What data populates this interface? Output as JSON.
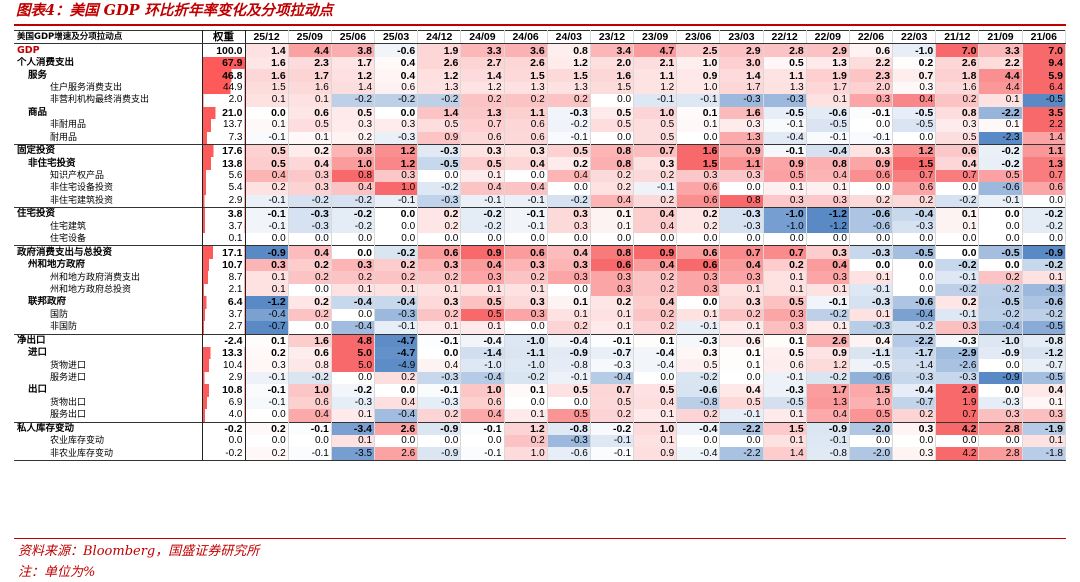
{
  "title": "图表4：美国 GDP 环比折年率变化及分项拉动点",
  "header": {
    "label": "美国GDP增速及分项拉动点",
    "weight": "权重",
    "periods": [
      "25/12",
      "25/09",
      "25/06",
      "25/03",
      "24/12",
      "24/09",
      "24/06",
      "24/03",
      "23/12",
      "23/09",
      "23/06",
      "23/03",
      "22/12",
      "22/09",
      "22/06",
      "22/03",
      "21/12",
      "21/09",
      "21/06"
    ]
  },
  "rows": [
    {
      "label": "GDP",
      "level": 0,
      "bold": true,
      "w": "100.0",
      "v": [
        "1.4",
        "4.4",
        "3.8",
        "-0.6",
        "1.9",
        "3.3",
        "3.6",
        "0.8",
        "3.4",
        "4.7",
        "2.5",
        "2.9",
        "2.8",
        "2.9",
        "0.6",
        "-1.0",
        "7.0",
        "3.3",
        "7.0"
      ]
    },
    {
      "label": "个人消费支出",
      "level": 0,
      "bold": true,
      "w": "67.9",
      "v": [
        "1.6",
        "2.3",
        "1.7",
        "0.4",
        "2.6",
        "2.7",
        "2.6",
        "1.2",
        "2.0",
        "2.1",
        "1.0",
        "3.0",
        "0.5",
        "1.3",
        "2.2",
        "0.2",
        "2.6",
        "2.2",
        "9.4"
      ]
    },
    {
      "label": "服务",
      "level": 1,
      "bold": true,
      "w": "46.8",
      "v": [
        "1.6",
        "1.7",
        "1.2",
        "0.4",
        "1.2",
        "1.4",
        "1.5",
        "1.5",
        "1.6",
        "1.1",
        "0.9",
        "1.4",
        "1.1",
        "1.9",
        "2.3",
        "0.7",
        "1.8",
        "4.4",
        "5.9"
      ]
    },
    {
      "label": "住户服务消费支出",
      "level": 3,
      "bold": false,
      "w": "44.9",
      "v": [
        "1.5",
        "1.6",
        "1.4",
        "0.6",
        "1.3",
        "1.2",
        "1.3",
        "1.3",
        "1.5",
        "1.2",
        "1.0",
        "1.7",
        "1.3",
        "1.7",
        "2.0",
        "0.3",
        "1.6",
        "4.4",
        "6.4"
      ]
    },
    {
      "label": "非营利机构最终消费支出",
      "level": 3,
      "bold": false,
      "w": "2.0",
      "v": [
        "0.1",
        "0.1",
        "-0.2",
        "-0.2",
        "-0.2",
        "0.2",
        "0.2",
        "0.2",
        "0.0",
        "-0.1",
        "-0.1",
        "-0.3",
        "-0.3",
        "0.1",
        "0.3",
        "0.4",
        "0.2",
        "0.1",
        "-0.5"
      ]
    },
    {
      "label": "商品",
      "level": 1,
      "bold": true,
      "w": "21.0",
      "v": [
        "0.0",
        "0.6",
        "0.5",
        "0.0",
        "1.4",
        "1.3",
        "1.1",
        "-0.3",
        "0.5",
        "1.0",
        "0.1",
        "1.6",
        "-0.5",
        "-0.6",
        "-0.1",
        "-0.5",
        "0.8",
        "-2.2",
        "3.5"
      ]
    },
    {
      "label": "非耐用品",
      "level": 3,
      "bold": false,
      "w": "13.7",
      "v": [
        "0.1",
        "0.5",
        "0.3",
        "0.3",
        "0.5",
        "0.7",
        "0.6",
        "-0.2",
        "0.5",
        "0.5",
        "0.1",
        "0.3",
        "-0.1",
        "-0.5",
        "0.0",
        "-0.5",
        "0.3",
        "0.1",
        "2.2"
      ]
    },
    {
      "label": "耐用品",
      "level": 3,
      "bold": false,
      "w": "7.3",
      "v": [
        "-0.1",
        "0.1",
        "0.2",
        "-0.3",
        "0.9",
        "0.6",
        "0.6",
        "-0.1",
        "0.0",
        "0.5",
        "0.0",
        "1.3",
        "-0.4",
        "-0.1",
        "-0.1",
        "0.0",
        "0.5",
        "-2.3",
        "1.4"
      ]
    },
    {
      "label": "固定投资",
      "level": 0,
      "bold": true,
      "sep": true,
      "w": "17.6",
      "v": [
        "0.5",
        "0.2",
        "0.8",
        "1.2",
        "-0.3",
        "0.3",
        "0.3",
        "0.5",
        "0.8",
        "0.7",
        "1.6",
        "0.9",
        "-0.1",
        "-0.4",
        "0.3",
        "1.2",
        "0.6",
        "-0.2",
        "1.1"
      ]
    },
    {
      "label": "非住宅投资",
      "level": 1,
      "bold": true,
      "w": "13.8",
      "v": [
        "0.5",
        "0.4",
        "1.0",
        "1.2",
        "-0.5",
        "0.5",
        "0.4",
        "0.2",
        "0.8",
        "0.3",
        "1.5",
        "1.1",
        "0.9",
        "0.8",
        "0.9",
        "1.5",
        "0.4",
        "-0.2",
        "1.3"
      ]
    },
    {
      "label": "知识产权产品",
      "level": 3,
      "bold": false,
      "w": "5.6",
      "v": [
        "0.4",
        "0.3",
        "0.8",
        "0.3",
        "0.0",
        "0.1",
        "0.0",
        "0.4",
        "0.2",
        "0.2",
        "0.3",
        "0.3",
        "0.5",
        "0.4",
        "0.6",
        "0.7",
        "0.7",
        "0.5",
        "0.7"
      ]
    },
    {
      "label": "非住宅设备投资",
      "level": 3,
      "bold": false,
      "w": "5.4",
      "v": [
        "0.2",
        "0.3",
        "0.4",
        "1.0",
        "-0.2",
        "0.4",
        "0.4",
        "0.0",
        "0.2",
        "-0.1",
        "0.6",
        "0.0",
        "0.1",
        "0.1",
        "0.0",
        "0.6",
        "0.0",
        "-0.6",
        "0.6"
      ]
    },
    {
      "label": "非住宅建筑投资",
      "level": 3,
      "bold": false,
      "w": "2.9",
      "v": [
        "-0.1",
        "-0.2",
        "-0.2",
        "-0.1",
        "-0.3",
        "-0.1",
        "-0.1",
        "-0.2",
        "0.4",
        "0.2",
        "0.6",
        "0.8",
        "0.3",
        "0.3",
        "0.2",
        "0.2",
        "-0.2",
        "-0.1",
        "0.0"
      ]
    },
    {
      "label": "住宅投资",
      "level": 0,
      "bold": true,
      "sep": true,
      "w": "3.8",
      "v": [
        "-0.1",
        "-0.3",
        "-0.2",
        "0.0",
        "0.2",
        "-0.2",
        "-0.1",
        "0.3",
        "0.1",
        "0.4",
        "0.2",
        "-0.3",
        "-1.0",
        "-1.2",
        "-0.6",
        "-0.4",
        "0.1",
        "0.0",
        "-0.2"
      ]
    },
    {
      "label": "住宅建筑",
      "level": 3,
      "bold": false,
      "w": "3.7",
      "v": [
        "-0.1",
        "-0.3",
        "-0.2",
        "0.0",
        "0.2",
        "-0.2",
        "-0.1",
        "0.3",
        "0.1",
        "0.4",
        "0.2",
        "-0.3",
        "-1.0",
        "-1.2",
        "-0.6",
        "-0.3",
        "0.1",
        "0.0",
        "-0.2"
      ]
    },
    {
      "label": "住宅设备",
      "level": 3,
      "bold": false,
      "w": "0.1",
      "v": [
        "0.0",
        "0.0",
        "0.0",
        "0.0",
        "0.0",
        "0.0",
        "0.0",
        "0.0",
        "0.0",
        "0.0",
        "0.0",
        "0.0",
        "0.0",
        "0.0",
        "0.0",
        "0.0",
        "0.0",
        "0.0",
        "0.0"
      ]
    },
    {
      "label": "政府消费支出与总投资",
      "level": 0,
      "bold": true,
      "sep": true,
      "w": "17.1",
      "v": [
        "-0.9",
        "0.4",
        "0.0",
        "-0.2",
        "0.6",
        "0.9",
        "0.6",
        "0.4",
        "0.8",
        "0.9",
        "0.6",
        "0.7",
        "0.7",
        "0.3",
        "-0.3",
        "-0.5",
        "0.0",
        "-0.5",
        "-0.9"
      ]
    },
    {
      "label": "州和地方政府",
      "level": 1,
      "bold": true,
      "w": "10.7",
      "v": [
        "0.3",
        "0.2",
        "0.3",
        "0.2",
        "0.3",
        "0.4",
        "0.3",
        "0.3",
        "0.6",
        "0.4",
        "0.6",
        "0.4",
        "0.2",
        "0.4",
        "0.0",
        "0.0",
        "-0.2",
        "0.0",
        "-0.2"
      ]
    },
    {
      "label": "州和地方政府消费支出",
      "level": 3,
      "bold": false,
      "w": "8.7",
      "v": [
        "0.1",
        "0.2",
        "0.2",
        "0.2",
        "0.2",
        "0.3",
        "0.2",
        "0.3",
        "0.3",
        "0.2",
        "0.3",
        "0.3",
        "0.1",
        "0.3",
        "0.1",
        "0.0",
        "-0.1",
        "0.2",
        "0.1"
      ]
    },
    {
      "label": "州和地方政府总投资",
      "level": 3,
      "bold": false,
      "w": "2.1",
      "v": [
        "0.1",
        "0.0",
        "0.1",
        "0.1",
        "0.1",
        "0.1",
        "0.1",
        "0.0",
        "0.3",
        "0.2",
        "0.3",
        "0.1",
        "0.1",
        "0.1",
        "-0.1",
        "0.0",
        "-0.2",
        "-0.2",
        "-0.3"
      ]
    },
    {
      "label": "联邦政府",
      "level": 1,
      "bold": true,
      "w": "6.4",
      "v": [
        "-1.2",
        "0.2",
        "-0.4",
        "-0.4",
        "0.3",
        "0.5",
        "0.3",
        "0.1",
        "0.2",
        "0.4",
        "0.0",
        "0.3",
        "0.5",
        "-0.1",
        "-0.3",
        "-0.6",
        "0.2",
        "-0.5",
        "-0.6"
      ]
    },
    {
      "label": "国防",
      "level": 3,
      "bold": false,
      "w": "3.7",
      "v": [
        "-0.4",
        "0.2",
        "0.0",
        "-0.3",
        "0.2",
        "0.5",
        "0.3",
        "0.1",
        "0.1",
        "0.2",
        "0.1",
        "0.2",
        "0.3",
        "-0.2",
        "0.1",
        "-0.4",
        "-0.1",
        "-0.2",
        "-0.2"
      ]
    },
    {
      "label": "非国防",
      "level": 3,
      "bold": false,
      "w": "2.7",
      "v": [
        "-0.7",
        "0.0",
        "-0.4",
        "-0.1",
        "0.1",
        "0.1",
        "0.0",
        "0.2",
        "0.1",
        "0.2",
        "-0.1",
        "0.1",
        "0.3",
        "0.1",
        "-0.3",
        "-0.2",
        "0.3",
        "-0.4",
        "-0.5"
      ]
    },
    {
      "label": "净出口",
      "level": 0,
      "bold": true,
      "sep": true,
      "w": "-2.4",
      "v": [
        "0.1",
        "1.6",
        "4.8",
        "-4.7",
        "-0.1",
        "-0.4",
        "-1.0",
        "-0.4",
        "-0.1",
        "0.1",
        "-0.3",
        "0.6",
        "0.1",
        "2.6",
        "0.4",
        "-2.2",
        "-0.3",
        "-1.0",
        "-0.8"
      ]
    },
    {
      "label": "进口",
      "level": 1,
      "bold": true,
      "w": "13.3",
      "v": [
        "0.2",
        "0.6",
        "5.0",
        "-4.7",
        "0.0",
        "-1.4",
        "-1.1",
        "-0.9",
        "-0.7",
        "-0.4",
        "0.3",
        "0.1",
        "0.5",
        "0.9",
        "-1.1",
        "-1.7",
        "-2.9",
        "-0.9",
        "-1.2"
      ]
    },
    {
      "label": "货物进口",
      "level": 3,
      "bold": false,
      "w": "10.4",
      "v": [
        "0.3",
        "0.8",
        "5.0",
        "-4.9",
        "0.4",
        "-1.0",
        "-1.0",
        "-0.8",
        "-0.3",
        "-0.4",
        "0.5",
        "0.1",
        "0.6",
        "1.2",
        "-0.5",
        "-1.4",
        "-2.6",
        "0.0",
        "-0.7"
      ]
    },
    {
      "label": "服务进口",
      "level": 3,
      "bold": false,
      "w": "2.9",
      "v": [
        "-0.1",
        "-0.2",
        "0.0",
        "0.2",
        "-0.3",
        "-0.4",
        "-0.2",
        "-0.1",
        "-0.4",
        "0.0",
        "-0.2",
        "0.0",
        "-0.1",
        "-0.2",
        "-0.6",
        "-0.3",
        "-0.3",
        "-0.9",
        "-0.5"
      ]
    },
    {
      "label": "出口",
      "level": 1,
      "bold": true,
      "w": "10.8",
      "v": [
        "-0.1",
        "1.0",
        "-0.2",
        "0.0",
        "-0.1",
        "1.0",
        "0.1",
        "0.5",
        "0.7",
        "0.5",
        "-0.6",
        "0.4",
        "-0.3",
        "1.7",
        "1.5",
        "-0.4",
        "2.6",
        "0.0",
        "0.4"
      ]
    },
    {
      "label": "货物出口",
      "level": 3,
      "bold": false,
      "w": "6.9",
      "v": [
        "-0.1",
        "0.6",
        "-0.3",
        "0.4",
        "-0.3",
        "0.6",
        "0.0",
        "0.0",
        "0.5",
        "0.4",
        "-0.8",
        "0.5",
        "-0.5",
        "1.3",
        "1.0",
        "-0.7",
        "1.9",
        "-0.3",
        "0.1"
      ]
    },
    {
      "label": "服务出口",
      "level": 3,
      "bold": false,
      "w": "4.0",
      "v": [
        "0.0",
        "0.4",
        "0.1",
        "-0.4",
        "0.2",
        "0.4",
        "0.1",
        "0.5",
        "0.2",
        "0.1",
        "0.2",
        "-0.1",
        "0.1",
        "0.4",
        "0.5",
        "0.2",
        "0.7",
        "0.3",
        "0.3"
      ]
    },
    {
      "label": "私人库存变动",
      "level": 0,
      "bold": true,
      "sep": true,
      "w": "-0.2",
      "v": [
        "0.2",
        "-0.1",
        "-3.4",
        "2.6",
        "-0.9",
        "-0.1",
        "1.2",
        "-0.8",
        "-0.2",
        "1.0",
        "-0.4",
        "-2.2",
        "1.5",
        "-0.9",
        "-2.0",
        "0.3",
        "4.2",
        "2.8",
        "-1.9"
      ]
    },
    {
      "label": "农业库存变动",
      "level": 3,
      "bold": false,
      "w": "0.0",
      "v": [
        "0.0",
        "0.0",
        "0.1",
        "0.0",
        "0.0",
        "0.0",
        "0.2",
        "-0.3",
        "-0.1",
        "0.1",
        "0.0",
        "0.0",
        "0.1",
        "-0.1",
        "0.0",
        "0.0",
        "0.0",
        "0.0",
        "0.1"
      ]
    },
    {
      "label": "非农业库存变动",
      "level": 3,
      "bold": false,
      "w": "-0.2",
      "v": [
        "0.2",
        "-0.1",
        "-3.5",
        "2.6",
        "-0.9",
        "-0.1",
        "1.0",
        "-0.6",
        "-0.1",
        "0.9",
        "-0.4",
        "-2.2",
        "1.4",
        "-0.8",
        "-2.0",
        "0.3",
        "4.2",
        "2.8",
        "-1.8"
      ]
    }
  ],
  "colors": {
    "accent": "#c00000",
    "positive": "#f8696b",
    "negative": "#5a8ac6"
  },
  "notes": {
    "source": "资料来源：Bloomberg，国盛证券研究所",
    "unit": "注：单位为%"
  }
}
